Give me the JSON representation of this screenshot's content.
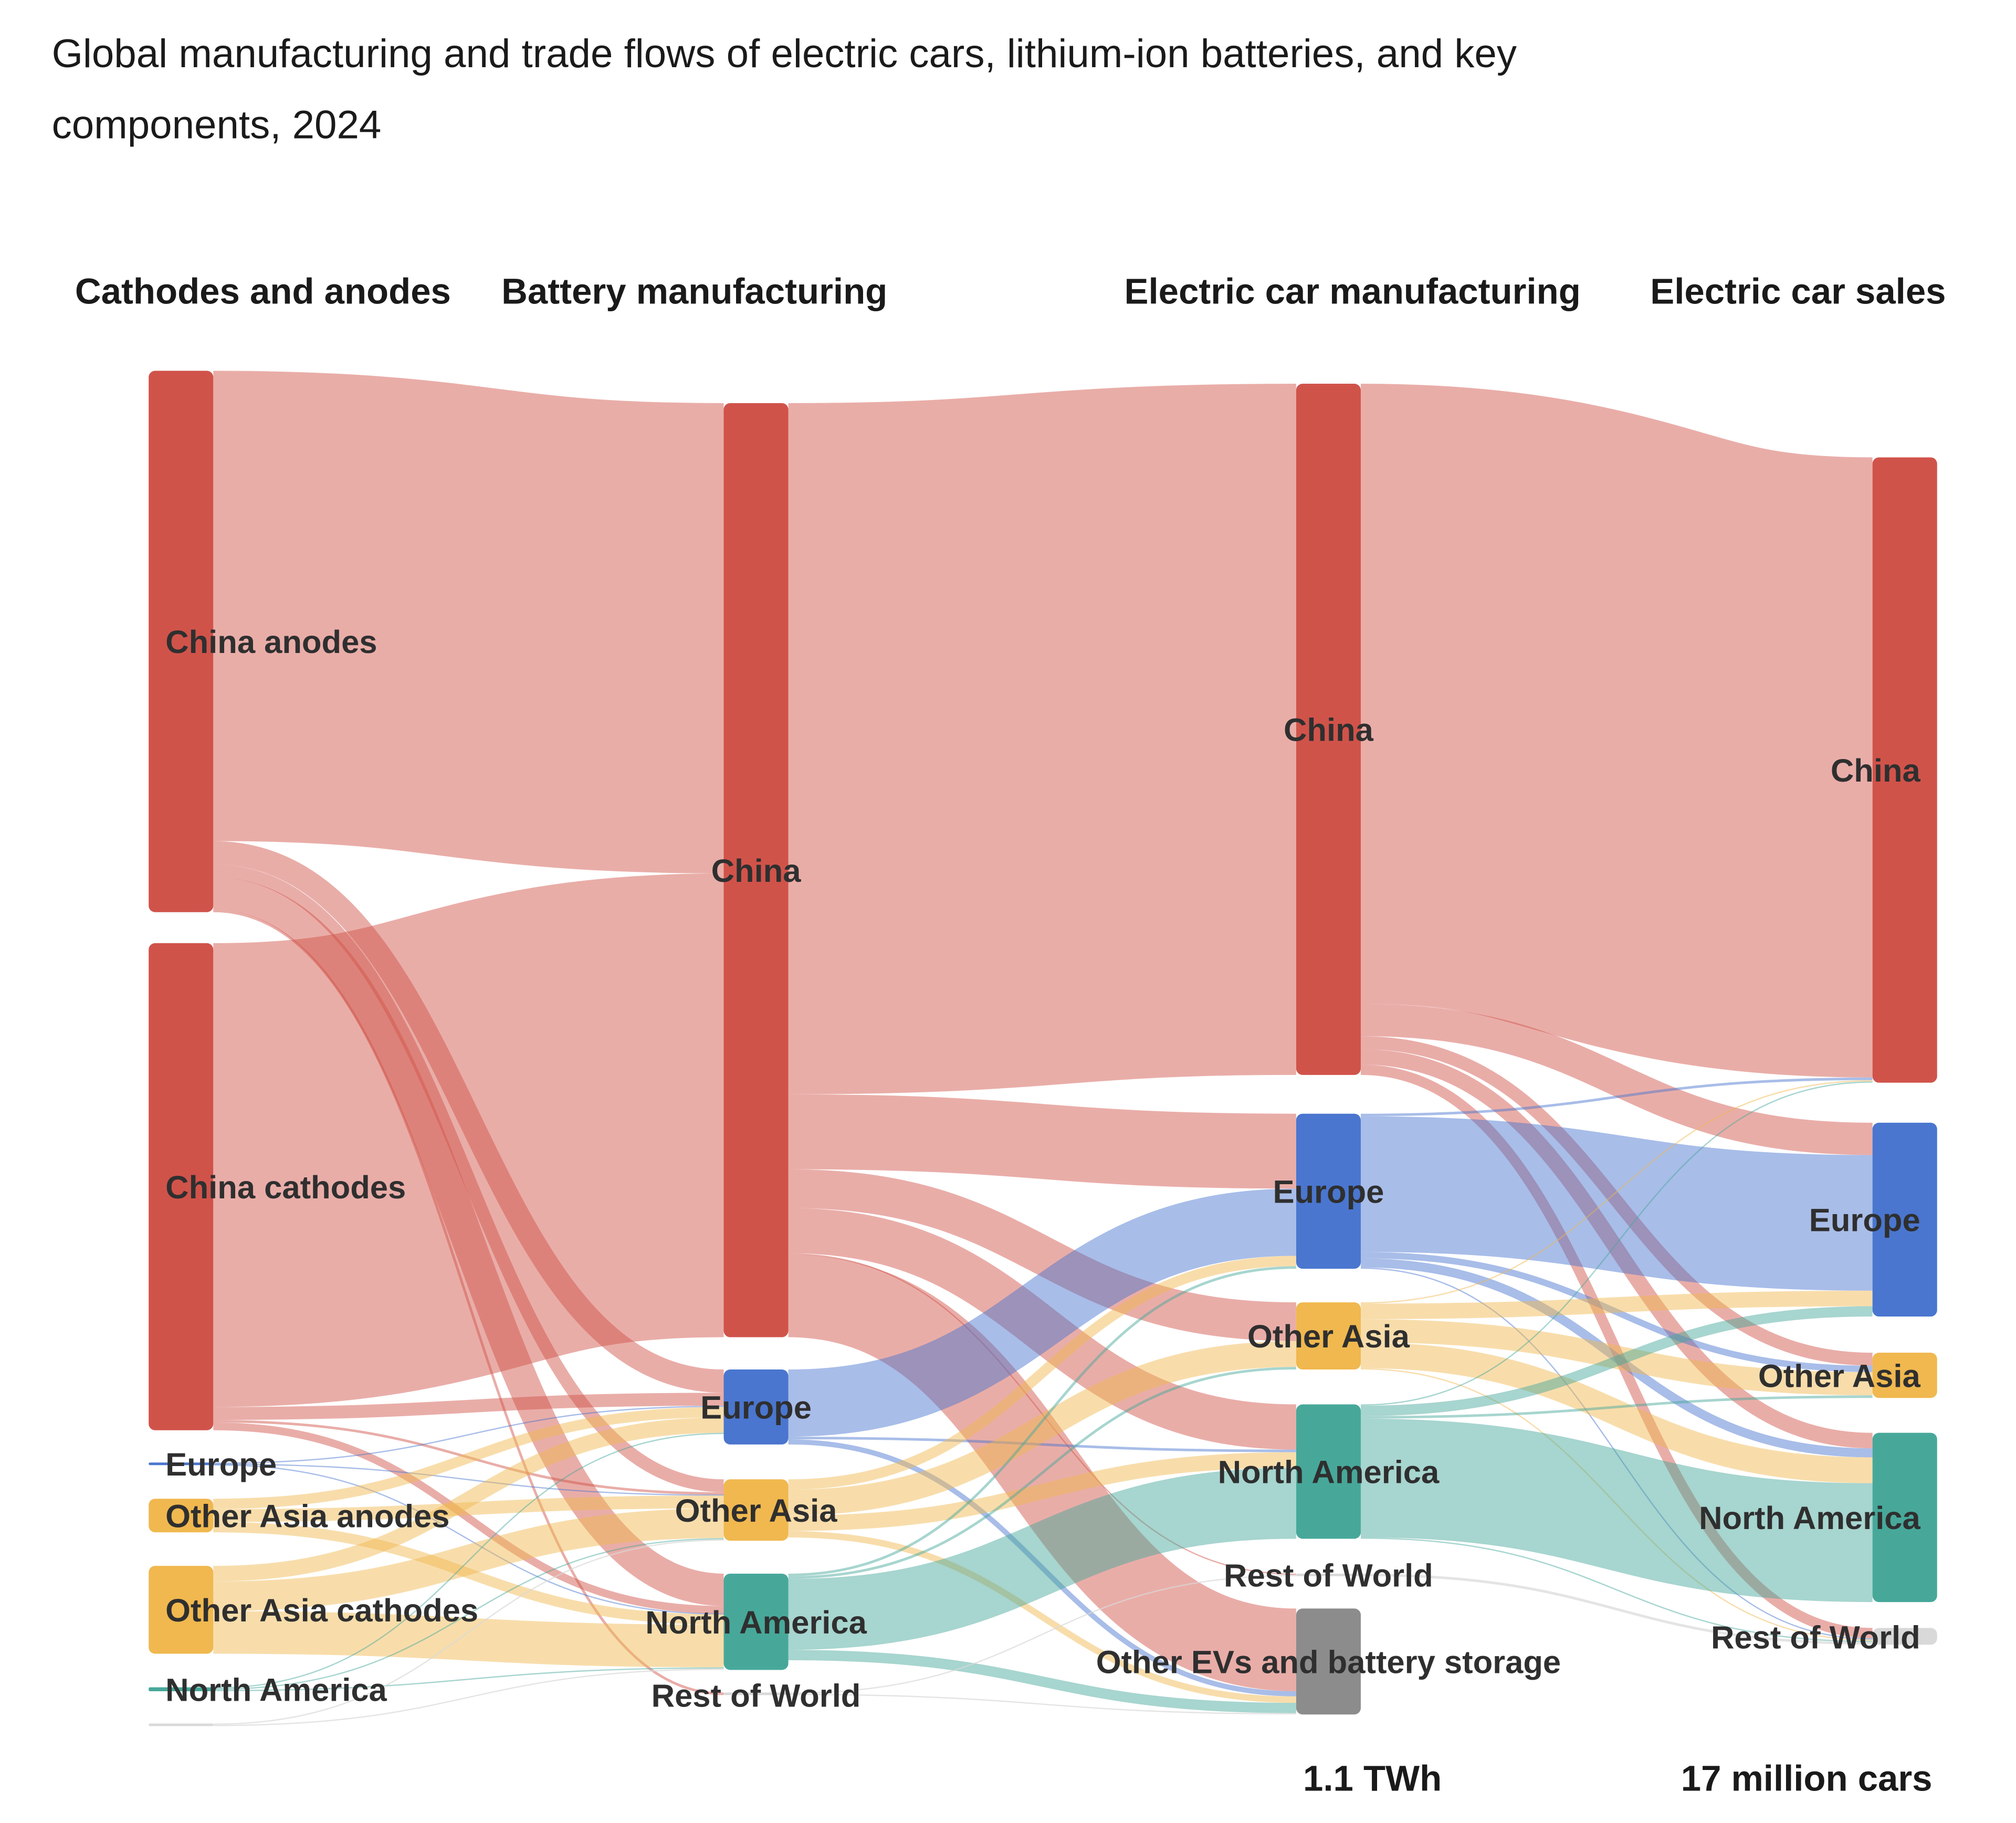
{
  "chart_data": {
    "type": "sankey",
    "title": "Global manufacturing and trade flows of electric cars, lithium-ion batteries, and key components, 2024",
    "title_lines": [
      "Global manufacturing and trade flows of electric cars, lithium-ion batteries, and key",
      "components, 2024"
    ],
    "columns": [
      "Cathodes and anodes",
      "Battery manufacturing",
      "Electric car manufacturing",
      "Electric car sales"
    ],
    "column_totals": {
      "2": "1.1 TWh",
      "3": "17 million cars"
    },
    "colors": {
      "China": "#d0534a",
      "Europe": "#4a76cf",
      "Other Asia": "#f0b84f",
      "North America": "#47a89a",
      "Rest of World": "#d9d9d9",
      "Other EVs": "#8c8c8c"
    },
    "nodes": [
      {
        "id": "a_cn_an",
        "label": "China anodes",
        "column": 0,
        "region": "China"
      },
      {
        "id": "a_cn_ca",
        "label": "China cathodes",
        "column": 0,
        "region": "China"
      },
      {
        "id": "a_eu",
        "label": "Europe",
        "column": 0,
        "region": "Europe"
      },
      {
        "id": "a_oa_an",
        "label": "Other Asia anodes",
        "column": 0,
        "region": "Other Asia"
      },
      {
        "id": "a_oa_ca",
        "label": "Other Asia cathodes",
        "column": 0,
        "region": "Other Asia"
      },
      {
        "id": "a_na",
        "label": "North America",
        "column": 0,
        "region": "North America"
      },
      {
        "id": "a_row",
        "label": "",
        "column": 0,
        "region": "Rest of World"
      },
      {
        "id": "b_cn",
        "label": "China",
        "column": 1,
        "region": "China"
      },
      {
        "id": "b_eu",
        "label": "Europe",
        "column": 1,
        "region": "Europe"
      },
      {
        "id": "b_oa",
        "label": "Other Asia",
        "column": 1,
        "region": "Other Asia"
      },
      {
        "id": "b_na",
        "label": "North America",
        "column": 1,
        "region": "North America"
      },
      {
        "id": "b_row",
        "label": "Rest of World",
        "column": 1,
        "region": "Rest of World"
      },
      {
        "id": "c_cn",
        "label": "China",
        "column": 2,
        "region": "China"
      },
      {
        "id": "c_eu",
        "label": "Europe",
        "column": 2,
        "region": "Europe"
      },
      {
        "id": "c_oa",
        "label": "Other Asia",
        "column": 2,
        "region": "Other Asia"
      },
      {
        "id": "c_na",
        "label": "North America",
        "column": 2,
        "region": "North America"
      },
      {
        "id": "c_row",
        "label": "Rest of World",
        "column": 2,
        "region": "Rest of World"
      },
      {
        "id": "c_oev",
        "label": "Other EVs and battery storage",
        "column": 2,
        "region": "Other EVs"
      },
      {
        "id": "d_cn",
        "label": "China",
        "column": 3,
        "region": "China"
      },
      {
        "id": "d_eu",
        "label": "Europe",
        "column": 3,
        "region": "Europe"
      },
      {
        "id": "d_oa",
        "label": "Other Asia",
        "column": 3,
        "region": "Other Asia"
      },
      {
        "id": "d_na",
        "label": "North America",
        "column": 3,
        "region": "North America"
      },
      {
        "id": "d_row",
        "label": "Rest of World",
        "column": 3,
        "region": "Rest of World"
      }
    ],
    "links": [
      [
        "a_cn_an",
        "b_cn",
        364
      ],
      [
        "a_cn_an",
        "b_eu",
        18
      ],
      [
        "a_cn_an",
        "b_oa",
        10
      ],
      [
        "a_cn_an",
        "b_na",
        25
      ],
      [
        "a_cn_an",
        "b_row",
        2
      ],
      [
        "a_cn_ca",
        "b_cn",
        359
      ],
      [
        "a_cn_ca",
        "b_eu",
        10
      ],
      [
        "a_cn_ca",
        "b_oa",
        2
      ],
      [
        "a_cn_ca",
        "b_na",
        6
      ],
      [
        "a_eu",
        "b_eu",
        1
      ],
      [
        "a_eu",
        "b_oa",
        0.5
      ],
      [
        "a_eu",
        "b_na",
        0.5
      ],
      [
        "a_oa_an",
        "b_eu",
        8
      ],
      [
        "a_oa_an",
        "b_oa",
        10
      ],
      [
        "a_oa_an",
        "b_na",
        8
      ],
      [
        "a_oa_ca",
        "b_eu",
        12
      ],
      [
        "a_oa_ca",
        "b_oa",
        23
      ],
      [
        "a_oa_ca",
        "b_na",
        33
      ],
      [
        "a_na",
        "b_eu",
        1
      ],
      [
        "a_na",
        "b_oa",
        1
      ],
      [
        "a_na",
        "b_na",
        1
      ],
      [
        "a_row",
        "b_oa",
        1
      ],
      [
        "a_row",
        "b_na",
        1
      ],
      [
        "b_cn",
        "c_cn",
        535
      ],
      [
        "b_cn",
        "c_eu",
        58
      ],
      [
        "b_cn",
        "c_oa",
        30
      ],
      [
        "b_cn",
        "c_na",
        35
      ],
      [
        "b_cn",
        "c_row",
        1
      ],
      [
        "b_cn",
        "c_oev",
        64
      ],
      [
        "b_eu",
        "c_eu",
        52
      ],
      [
        "b_eu",
        "c_na",
        2
      ],
      [
        "b_eu",
        "c_oev",
        4
      ],
      [
        "b_oa",
        "c_eu",
        8
      ],
      [
        "b_oa",
        "c_oa",
        20
      ],
      [
        "b_oa",
        "c_na",
        12
      ],
      [
        "b_oa",
        "c_oev",
        5
      ],
      [
        "b_na",
        "c_eu",
        2
      ],
      [
        "b_na",
        "c_oa",
        2
      ],
      [
        "b_na",
        "c_na",
        55
      ],
      [
        "b_na",
        "c_oev",
        8
      ],
      [
        "b_row",
        "c_row",
        1
      ],
      [
        "b_row",
        "c_oev",
        1
      ],
      [
        "c_cn",
        "d_cn",
        480
      ],
      [
        "c_cn",
        "d_eu",
        25
      ],
      [
        "c_cn",
        "d_oa",
        10
      ],
      [
        "c_cn",
        "d_na",
        12
      ],
      [
        "c_cn",
        "d_row",
        8
      ],
      [
        "c_eu",
        "d_cn",
        2
      ],
      [
        "c_eu",
        "d_eu",
        105
      ],
      [
        "c_eu",
        "d_oa",
        5
      ],
      [
        "c_eu",
        "d_na",
        7
      ],
      [
        "c_eu",
        "d_row",
        1
      ],
      [
        "c_oa",
        "d_cn",
        1
      ],
      [
        "c_oa",
        "d_eu",
        12
      ],
      [
        "c_oa",
        "d_oa",
        18
      ],
      [
        "c_oa",
        "d_na",
        20
      ],
      [
        "c_oa",
        "d_row",
        1
      ],
      [
        "c_na",
        "d_cn",
        1
      ],
      [
        "c_na",
        "d_eu",
        8
      ],
      [
        "c_na",
        "d_oa",
        2
      ],
      [
        "c_na",
        "d_na",
        92
      ],
      [
        "c_na",
        "d_row",
        1
      ],
      [
        "c_row",
        "d_row",
        2
      ]
    ]
  }
}
